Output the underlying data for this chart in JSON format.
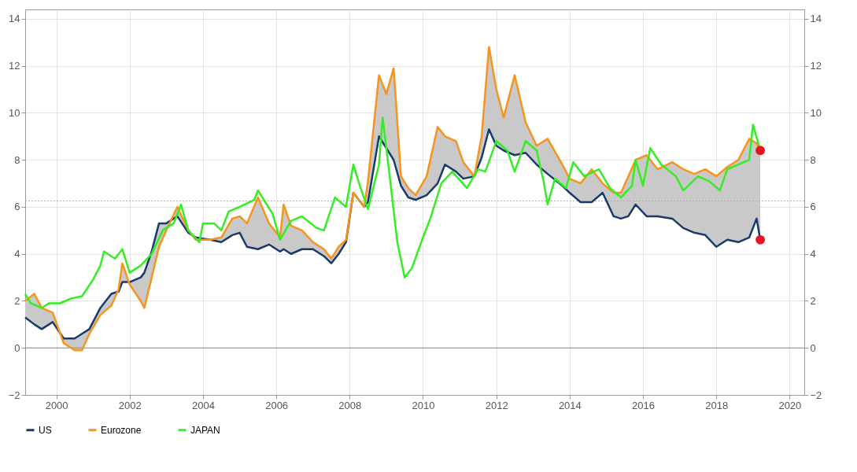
{
  "chart_data": {
    "type": "line",
    "x": [
      1999.15,
      1999.4,
      1999.6,
      1999.9,
      2000.2,
      2000.5,
      2000.7,
      2000.9,
      2001.2,
      2001.5,
      2001.7,
      2001.8,
      2002.0,
      2002.3,
      2002.4,
      2002.6,
      2002.8,
      2003.0,
      2003.3,
      2003.6,
      2003.8,
      2004.2,
      2004.5,
      2004.8,
      2005.0,
      2005.2,
      2005.5,
      2005.8,
      2006.1,
      2006.2,
      2006.4,
      2006.7,
      2007.0,
      2007.3,
      2007.5,
      2007.7,
      2007.9,
      2008.1,
      2008.4,
      2008.5,
      2008.8,
      2009.0,
      2009.2,
      2009.4,
      2009.6,
      2009.8,
      2010.1,
      2010.4,
      2010.6,
      2010.9,
      2011.1,
      2011.4,
      2011.6,
      2011.8,
      2012.0,
      2012.2,
      2012.5,
      2012.8,
      2013.1,
      2013.4,
      2013.8,
      2014.0,
      2014.3,
      2014.6,
      2014.9,
      2015.2,
      2015.4,
      2015.6,
      2015.8,
      2016.1,
      2016.4,
      2016.8,
      2017.1,
      2017.4,
      2017.7,
      2018.0,
      2018.3,
      2018.6,
      2018.9,
      2019.1,
      2019.2
    ],
    "series": [
      {
        "name": "US",
        "color": "#1a3a6b",
        "values": [
          1.3,
          1.0,
          0.8,
          1.1,
          0.4,
          0.4,
          0.6,
          0.8,
          1.7,
          2.3,
          2.4,
          2.8,
          2.8,
          3.0,
          3.2,
          4.1,
          5.3,
          5.3,
          5.6,
          4.9,
          4.7,
          4.6,
          4.5,
          4.8,
          4.9,
          4.3,
          4.2,
          4.4,
          4.1,
          4.2,
          4.0,
          4.2,
          4.2,
          3.9,
          3.6,
          4.0,
          4.5,
          6.6,
          6.0,
          6.2,
          9.0,
          8.5,
          8.0,
          6.9,
          6.4,
          6.3,
          6.5,
          7.0,
          7.8,
          7.5,
          7.2,
          7.3,
          8.1,
          9.3,
          8.6,
          8.4,
          8.2,
          8.3,
          7.8,
          7.4,
          6.9,
          6.6,
          6.2,
          6.2,
          6.6,
          5.6,
          5.5,
          5.6,
          6.1,
          5.6,
          5.6,
          5.5,
          5.1,
          4.9,
          4.8,
          4.3,
          4.6,
          4.5,
          4.7,
          5.5,
          4.6
        ]
      },
      {
        "name": "Eurozone",
        "color": "#f7941d",
        "values": [
          2.0,
          2.3,
          1.7,
          1.5,
          0.2,
          -0.1,
          -0.1,
          0.6,
          1.4,
          1.8,
          2.5,
          3.6,
          2.7,
          2.0,
          1.7,
          3.0,
          4.3,
          5.0,
          6.0,
          5.0,
          4.6,
          4.6,
          4.7,
          5.5,
          5.6,
          5.3,
          6.4,
          5.3,
          4.7,
          6.1,
          5.2,
          5.0,
          4.5,
          4.2,
          3.8,
          4.3,
          4.6,
          6.6,
          6.0,
          7.1,
          11.6,
          10.8,
          11.9,
          7.3,
          6.8,
          6.5,
          7.3,
          9.4,
          9.0,
          8.8,
          7.9,
          7.3,
          9.0,
          12.8,
          11.0,
          9.8,
          11.6,
          9.6,
          8.6,
          8.9,
          7.8,
          7.2,
          7.0,
          7.6,
          7.0,
          6.6,
          6.6,
          7.3,
          8.0,
          8.2,
          7.6,
          7.9,
          7.6,
          7.4,
          7.6,
          7.3,
          7.7,
          8.0,
          8.9,
          8.7,
          8.4
        ],
        "lower": [
          1.3,
          1.0,
          0.8,
          1.1,
          0.4,
          0.4,
          0.6,
          0.8,
          1.7,
          2.3,
          2.4,
          2.8,
          2.8,
          3.0,
          3.2,
          4.1,
          5.3,
          5.3,
          5.6,
          4.9,
          4.7,
          4.6,
          4.5,
          4.8,
          4.9,
          4.3,
          4.2,
          4.4,
          4.1,
          4.2,
          4.0,
          4.2,
          4.2,
          3.9,
          3.6,
          4.0,
          4.5,
          6.6,
          6.0,
          6.2,
          9.0,
          8.5,
          8.0,
          6.9,
          6.4,
          6.3,
          6.5,
          7.0,
          7.8,
          7.5,
          7.2,
          7.3,
          8.1,
          9.3,
          8.6,
          8.4,
          8.2,
          8.3,
          7.8,
          7.4,
          6.9,
          6.6,
          6.2,
          6.2,
          6.6,
          5.6,
          5.5,
          5.6,
          6.1,
          5.6,
          5.6,
          5.5,
          5.1,
          4.9,
          4.8,
          4.3,
          4.6,
          4.5,
          4.7,
          5.5,
          4.6
        ],
        "upper": [
          2.0,
          2.3,
          1.7,
          1.5,
          0.2,
          -0.1,
          -0.1,
          0.6,
          1.4,
          1.8,
          2.5,
          3.6,
          2.7,
          2.0,
          1.7,
          3.0,
          4.3,
          5.0,
          6.0,
          5.0,
          4.6,
          4.6,
          4.7,
          5.5,
          5.6,
          5.3,
          6.4,
          5.3,
          4.7,
          6.1,
          5.2,
          5.0,
          4.5,
          4.2,
          3.8,
          4.3,
          4.6,
          6.6,
          6.0,
          7.1,
          11.6,
          10.8,
          11.9,
          7.3,
          6.8,
          6.5,
          7.3,
          9.4,
          9.0,
          8.8,
          7.9,
          7.3,
          9.0,
          12.8,
          11.0,
          9.8,
          11.6,
          9.6,
          8.6,
          8.9,
          7.8,
          7.2,
          7.0,
          7.6,
          7.0,
          6.6,
          6.6,
          7.3,
          8.0,
          8.2,
          7.6,
          7.9,
          7.6,
          7.4,
          7.6,
          7.3,
          7.7,
          8.0,
          8.9,
          8.7,
          8.4
        ]
      },
      {
        "name": "JAPAN",
        "color": "#33ee22",
        "x": [
          1999.15,
          1999.3,
          1999.6,
          1999.8,
          2000.1,
          2000.4,
          2000.7,
          2001.0,
          2001.2,
          2001.3,
          2001.6,
          2001.8,
          2002.0,
          2002.3,
          2002.6,
          2002.9,
          2003.2,
          2003.4,
          2003.6,
          2003.9,
          2004.0,
          2004.3,
          2004.5,
          2004.7,
          2005.0,
          2005.4,
          2005.5,
          2005.9,
          2006.1,
          2006.4,
          2006.7,
          2007.1,
          2007.3,
          2007.6,
          2007.9,
          2008.1,
          2008.3,
          2008.5,
          2008.8,
          2008.9,
          2009.1,
          2009.3,
          2009.5,
          2009.7,
          2010.0,
          2010.2,
          2010.5,
          2010.8,
          2011.2,
          2011.5,
          2011.7,
          2012.0,
          2012.3,
          2012.5,
          2012.8,
          2013.1,
          2013.3,
          2013.4,
          2013.6,
          2013.9,
          2014.1,
          2014.4,
          2014.8,
          2015.1,
          2015.4,
          2015.7,
          2015.8,
          2016.0,
          2016.2,
          2016.5,
          2016.9,
          2017.1,
          2017.5,
          2017.8,
          2018.1,
          2018.3,
          2018.6,
          2018.9,
          2019.0,
          2019.2
        ],
        "values": [
          2.3,
          1.9,
          1.7,
          1.9,
          1.9,
          2.1,
          2.2,
          2.9,
          3.5,
          4.1,
          3.8,
          4.2,
          3.2,
          3.5,
          4.0,
          5.0,
          5.3,
          6.1,
          5.0,
          4.5,
          5.3,
          5.3,
          5.0,
          5.8,
          6.0,
          6.3,
          6.7,
          5.7,
          4.6,
          5.4,
          5.6,
          5.1,
          5.0,
          6.4,
          6.0,
          7.8,
          6.8,
          5.9,
          7.8,
          9.8,
          7.2,
          4.5,
          3.0,
          3.4,
          4.7,
          5.5,
          7.0,
          7.5,
          6.8,
          7.6,
          7.5,
          8.8,
          8.4,
          7.5,
          8.8,
          8.4,
          7.0,
          6.1,
          7.2,
          6.8,
          7.9,
          7.3,
          7.6,
          6.8,
          6.4,
          6.9,
          8.0,
          6.9,
          8.5,
          7.8,
          7.3,
          6.7,
          7.3,
          7.1,
          6.7,
          7.6,
          7.8,
          8.0,
          9.5,
          8.4
        ]
      },
      {
        "type": "scatter",
        "color": "#e8141e",
        "marker": "circle",
        "x": [
          2019.2,
          2019.2
        ],
        "values": [
          8.4,
          4.6
        ]
      }
    ],
    "xlim": [
      1999.15,
      2020.4
    ],
    "xticks": [
      2000,
      2002,
      2004,
      2006,
      2008,
      2010,
      2012,
      2014,
      2016,
      2018,
      2020
    ],
    "ylim": [
      -2,
      14.4
    ],
    "yticks": [
      -2,
      0,
      2,
      4,
      6,
      8,
      10,
      12,
      14
    ],
    "y2lim": [
      -2,
      14.4
    ],
    "y2ticks": [
      -2,
      0,
      2,
      4,
      6,
      8,
      10,
      12,
      14
    ],
    "ref_lines": [
      {
        "axis": "y",
        "value": 0,
        "color": "#888888",
        "line_style": "solid"
      },
      {
        "axis": "y",
        "value": 6.25,
        "color": "#e0b030",
        "line_style": "dotted"
      }
    ],
    "grid": true,
    "legend": "bottom"
  }
}
